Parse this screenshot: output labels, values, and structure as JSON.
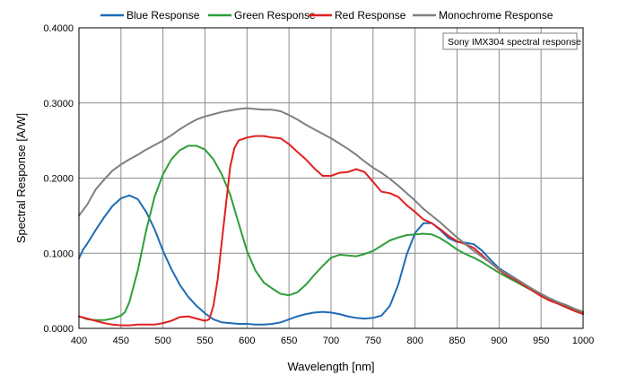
{
  "chart_data": {
    "type": "line",
    "annotation": "Sony IMX304 spectral response",
    "xlabel": "Wavelength [nm]",
    "ylabel": "Spectral Response [A/W]",
    "xlim": [
      400,
      1000
    ],
    "ylim": [
      0,
      0.4
    ],
    "x_ticks": [
      400,
      450,
      500,
      550,
      600,
      650,
      700,
      750,
      800,
      850,
      900,
      950,
      1000
    ],
    "y_ticks": [
      0,
      0.1,
      0.2,
      0.3,
      0.4
    ],
    "y_tick_labels": [
      "0.0000",
      "0.1000",
      "0.2000",
      "0.3000",
      "0.4000"
    ],
    "grid": true,
    "legend_position": "top",
    "series": [
      {
        "name": "Blue Response",
        "color": "#1f6bb5",
        "points": [
          [
            400,
            0.093
          ],
          [
            405,
            0.105
          ],
          [
            410,
            0.113
          ],
          [
            420,
            0.131
          ],
          [
            430,
            0.148
          ],
          [
            440,
            0.163
          ],
          [
            450,
            0.173
          ],
          [
            460,
            0.177
          ],
          [
            470,
            0.172
          ],
          [
            480,
            0.155
          ],
          [
            490,
            0.132
          ],
          [
            500,
            0.103
          ],
          [
            510,
            0.079
          ],
          [
            520,
            0.058
          ],
          [
            530,
            0.042
          ],
          [
            540,
            0.03
          ],
          [
            550,
            0.02
          ],
          [
            560,
            0.012
          ],
          [
            570,
            0.008
          ],
          [
            580,
            0.007
          ],
          [
            590,
            0.006
          ],
          [
            600,
            0.006
          ],
          [
            610,
            0.005
          ],
          [
            620,
            0.005
          ],
          [
            630,
            0.006
          ],
          [
            640,
            0.008
          ],
          [
            650,
            0.012
          ],
          [
            660,
            0.016
          ],
          [
            670,
            0.019
          ],
          [
            680,
            0.021
          ],
          [
            690,
            0.022
          ],
          [
            700,
            0.021
          ],
          [
            710,
            0.019
          ],
          [
            720,
            0.016
          ],
          [
            730,
            0.014
          ],
          [
            740,
            0.013
          ],
          [
            750,
            0.014
          ],
          [
            760,
            0.017
          ],
          [
            770,
            0.03
          ],
          [
            780,
            0.058
          ],
          [
            790,
            0.098
          ],
          [
            800,
            0.127
          ],
          [
            810,
            0.14
          ],
          [
            820,
            0.14
          ],
          [
            830,
            0.131
          ],
          [
            840,
            0.12
          ],
          [
            850,
            0.115
          ],
          [
            860,
            0.114
          ],
          [
            870,
            0.112
          ],
          [
            880,
            0.103
          ],
          [
            890,
            0.091
          ],
          [
            900,
            0.08
          ],
          [
            910,
            0.073
          ],
          [
            920,
            0.066
          ],
          [
            930,
            0.059
          ],
          [
            940,
            0.052
          ],
          [
            950,
            0.045
          ],
          [
            960,
            0.04
          ],
          [
            970,
            0.035
          ],
          [
            980,
            0.03
          ],
          [
            990,
            0.025
          ],
          [
            1000,
            0.02
          ]
        ]
      },
      {
        "name": "Green Response",
        "color": "#2e9e3a",
        "points": [
          [
            400,
            0.016
          ],
          [
            410,
            0.012
          ],
          [
            420,
            0.011
          ],
          [
            430,
            0.011
          ],
          [
            440,
            0.013
          ],
          [
            450,
            0.017
          ],
          [
            455,
            0.022
          ],
          [
            460,
            0.035
          ],
          [
            470,
            0.077
          ],
          [
            480,
            0.13
          ],
          [
            490,
            0.175
          ],
          [
            500,
            0.205
          ],
          [
            510,
            0.225
          ],
          [
            520,
            0.237
          ],
          [
            530,
            0.243
          ],
          [
            540,
            0.243
          ],
          [
            550,
            0.238
          ],
          [
            560,
            0.225
          ],
          [
            570,
            0.205
          ],
          [
            580,
            0.178
          ],
          [
            590,
            0.14
          ],
          [
            600,
            0.103
          ],
          [
            610,
            0.077
          ],
          [
            620,
            0.061
          ],
          [
            630,
            0.053
          ],
          [
            640,
            0.046
          ],
          [
            650,
            0.044
          ],
          [
            660,
            0.048
          ],
          [
            670,
            0.058
          ],
          [
            680,
            0.071
          ],
          [
            690,
            0.083
          ],
          [
            700,
            0.094
          ],
          [
            710,
            0.098
          ],
          [
            720,
            0.097
          ],
          [
            730,
            0.096
          ],
          [
            740,
            0.099
          ],
          [
            750,
            0.103
          ],
          [
            760,
            0.11
          ],
          [
            770,
            0.117
          ],
          [
            780,
            0.121
          ],
          [
            790,
            0.124
          ],
          [
            800,
            0.125
          ],
          [
            810,
            0.126
          ],
          [
            820,
            0.125
          ],
          [
            830,
            0.12
          ],
          [
            840,
            0.113
          ],
          [
            850,
            0.105
          ],
          [
            860,
            0.099
          ],
          [
            870,
            0.094
          ],
          [
            880,
            0.088
          ],
          [
            890,
            0.081
          ],
          [
            900,
            0.074
          ],
          [
            910,
            0.068
          ],
          [
            920,
            0.062
          ],
          [
            930,
            0.056
          ],
          [
            940,
            0.05
          ],
          [
            950,
            0.043
          ],
          [
            960,
            0.038
          ],
          [
            970,
            0.033
          ],
          [
            980,
            0.028
          ],
          [
            990,
            0.024
          ],
          [
            1000,
            0.02
          ]
        ]
      },
      {
        "name": "Red Response",
        "color": "#e02020",
        "points": [
          [
            400,
            0.016
          ],
          [
            410,
            0.013
          ],
          [
            420,
            0.01
          ],
          [
            430,
            0.007
          ],
          [
            440,
            0.005
          ],
          [
            450,
            0.004
          ],
          [
            460,
            0.004
          ],
          [
            470,
            0.005
          ],
          [
            480,
            0.005
          ],
          [
            490,
            0.005
          ],
          [
            500,
            0.007
          ],
          [
            510,
            0.01
          ],
          [
            520,
            0.015
          ],
          [
            530,
            0.016
          ],
          [
            540,
            0.013
          ],
          [
            550,
            0.01
          ],
          [
            555,
            0.012
          ],
          [
            560,
            0.03
          ],
          [
            565,
            0.065
          ],
          [
            570,
            0.115
          ],
          [
            575,
            0.165
          ],
          [
            580,
            0.215
          ],
          [
            585,
            0.24
          ],
          [
            590,
            0.25
          ],
          [
            600,
            0.254
          ],
          [
            610,
            0.256
          ],
          [
            620,
            0.256
          ],
          [
            630,
            0.254
          ],
          [
            640,
            0.253
          ],
          [
            650,
            0.245
          ],
          [
            660,
            0.235
          ],
          [
            670,
            0.225
          ],
          [
            680,
            0.213
          ],
          [
            690,
            0.203
          ],
          [
            700,
            0.203
          ],
          [
            710,
            0.207
          ],
          [
            720,
            0.208
          ],
          [
            730,
            0.212
          ],
          [
            740,
            0.208
          ],
          [
            750,
            0.195
          ],
          [
            760,
            0.182
          ],
          [
            770,
            0.18
          ],
          [
            780,
            0.175
          ],
          [
            790,
            0.164
          ],
          [
            800,
            0.155
          ],
          [
            810,
            0.145
          ],
          [
            820,
            0.14
          ],
          [
            830,
            0.132
          ],
          [
            840,
            0.123
          ],
          [
            850,
            0.116
          ],
          [
            860,
            0.112
          ],
          [
            870,
            0.107
          ],
          [
            880,
            0.097
          ],
          [
            890,
            0.087
          ],
          [
            900,
            0.078
          ],
          [
            910,
            0.07
          ],
          [
            920,
            0.064
          ],
          [
            930,
            0.057
          ],
          [
            940,
            0.05
          ],
          [
            950,
            0.043
          ],
          [
            960,
            0.037
          ],
          [
            970,
            0.033
          ],
          [
            980,
            0.028
          ],
          [
            990,
            0.023
          ],
          [
            1000,
            0.019
          ]
        ]
      },
      {
        "name": "Monochrome Response",
        "color": "#7f7f7f",
        "points": [
          [
            400,
            0.15
          ],
          [
            410,
            0.165
          ],
          [
            420,
            0.185
          ],
          [
            430,
            0.198
          ],
          [
            440,
            0.21
          ],
          [
            450,
            0.218
          ],
          [
            460,
            0.225
          ],
          [
            470,
            0.231
          ],
          [
            480,
            0.238
          ],
          [
            490,
            0.244
          ],
          [
            500,
            0.25
          ],
          [
            510,
            0.257
          ],
          [
            520,
            0.265
          ],
          [
            530,
            0.272
          ],
          [
            540,
            0.278
          ],
          [
            550,
            0.282
          ],
          [
            560,
            0.285
          ],
          [
            570,
            0.288
          ],
          [
            580,
            0.29
          ],
          [
            590,
            0.292
          ],
          [
            600,
            0.293
          ],
          [
            610,
            0.292
          ],
          [
            620,
            0.291
          ],
          [
            630,
            0.291
          ],
          [
            640,
            0.289
          ],
          [
            650,
            0.284
          ],
          [
            660,
            0.278
          ],
          [
            670,
            0.271
          ],
          [
            680,
            0.265
          ],
          [
            690,
            0.259
          ],
          [
            700,
            0.253
          ],
          [
            710,
            0.246
          ],
          [
            720,
            0.239
          ],
          [
            730,
            0.231
          ],
          [
            740,
            0.222
          ],
          [
            750,
            0.214
          ],
          [
            760,
            0.207
          ],
          [
            770,
            0.199
          ],
          [
            780,
            0.19
          ],
          [
            790,
            0.18
          ],
          [
            800,
            0.17
          ],
          [
            810,
            0.159
          ],
          [
            820,
            0.15
          ],
          [
            830,
            0.141
          ],
          [
            840,
            0.131
          ],
          [
            850,
            0.121
          ],
          [
            860,
            0.112
          ],
          [
            870,
            0.103
          ],
          [
            880,
            0.095
          ],
          [
            890,
            0.087
          ],
          [
            900,
            0.079
          ],
          [
            910,
            0.072
          ],
          [
            920,
            0.066
          ],
          [
            930,
            0.059
          ],
          [
            940,
            0.052
          ],
          [
            950,
            0.046
          ],
          [
            960,
            0.04
          ],
          [
            970,
            0.035
          ],
          [
            980,
            0.031
          ],
          [
            990,
            0.026
          ],
          [
            1000,
            0.022
          ]
        ]
      }
    ]
  }
}
